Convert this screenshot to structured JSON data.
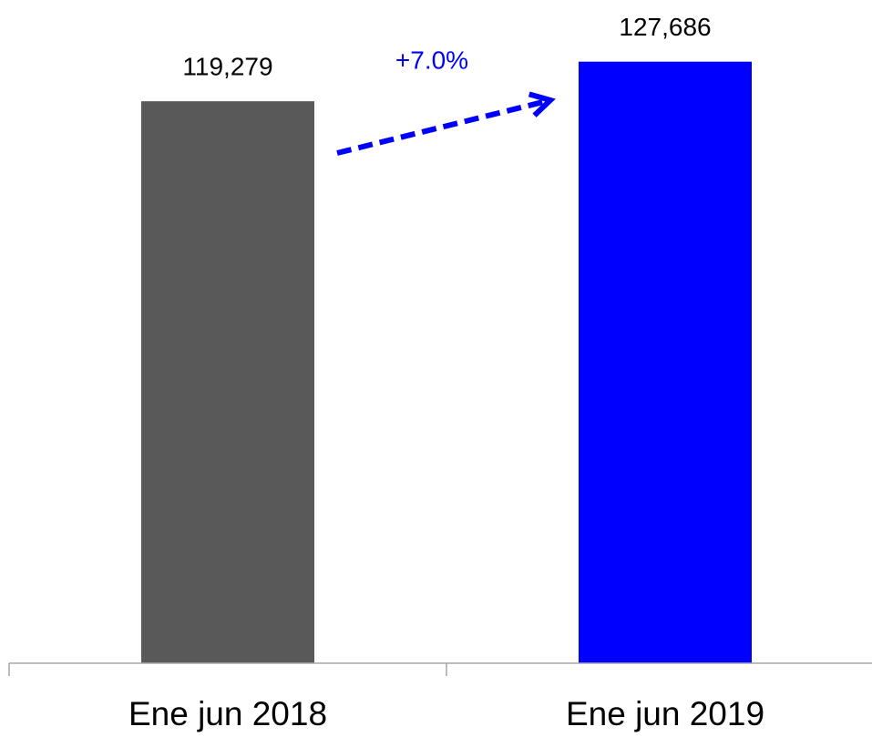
{
  "chart_data": {
    "type": "bar",
    "categories": [
      "Ene jun 2018",
      "Ene jun 2019"
    ],
    "values": [
      119279,
      127686
    ],
    "value_labels": [
      "119,279",
      "127,686"
    ],
    "colors": [
      "#595959",
      "#0000ff"
    ],
    "ylim": [
      0,
      140000
    ],
    "annotation": "+7.0%"
  }
}
